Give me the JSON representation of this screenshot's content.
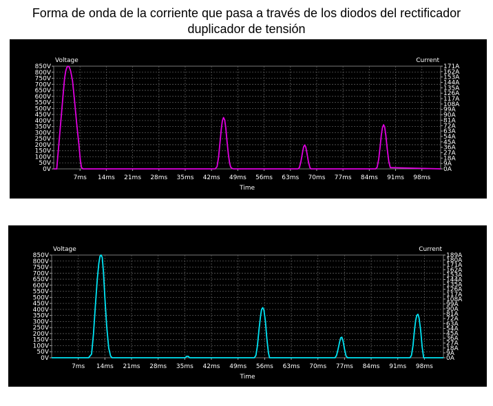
{
  "figure": {
    "title_line1": "Forma de onda de la corriente que pasa a través de los diodos del rectificador",
    "title_line2": "duplicador de tensión"
  },
  "chart_data": [
    {
      "type": "line",
      "ylabel_left": "Voltage",
      "ylabel_right": "Current",
      "xlabel": "Time",
      "grid": true,
      "background": "#000000",
      "grid_color": "#5a5a5a",
      "text_color": "#ffffff",
      "x_unit": "ms",
      "xlim": [
        0,
        103
      ],
      "x_ticks": [
        "7ms",
        "14ms",
        "21ms",
        "28ms",
        "35ms",
        "42ms",
        "49ms",
        "56ms",
        "63ms",
        "70ms",
        "77ms",
        "84ms",
        "91ms",
        "98ms"
      ],
      "ylim_left": [
        0,
        850
      ],
      "y_ticks_left": [
        "850V",
        "800V",
        "750V",
        "700V",
        "650V",
        "600V",
        "550V",
        "500V",
        "450V",
        "400V",
        "350V",
        "300V",
        "250V",
        "200V",
        "150V",
        "100V",
        "50V",
        "0V"
      ],
      "ylim_right": [
        0,
        171
      ],
      "y_ticks_right": [
        "171A",
        "162A",
        "153A",
        "144A",
        "135A",
        "126A",
        "117A",
        "108A",
        "99A",
        "90A",
        "81A",
        "72A",
        "63A",
        "54A",
        "45A",
        "36A",
        "27A",
        "18A",
        "9A",
        "0A"
      ],
      "series": [
        {
          "color": "#e000e0",
          "x": [
            0,
            0.8,
            2.6,
            2.9,
            3.2,
            3.5,
            3.8,
            4.1,
            4.5,
            5.0,
            5.5,
            6.1,
            6.7,
            7.1,
            7.4,
            7.8,
            43.0,
            43.5,
            43.9,
            44.3,
            44.6,
            44.9,
            45.2,
            45.5,
            45.8,
            46.1,
            46.5,
            46.8,
            47.1,
            47.5,
            47.9,
            65.0,
            65.4,
            65.8,
            66.2,
            66.5,
            66.8,
            67.1,
            67.4,
            67.8,
            68.2,
            68.5,
            85.7,
            86.1,
            86.5,
            86.9,
            87.2,
            87.5,
            87.8,
            88.1,
            88.4,
            88.8,
            89.2,
            89.6,
            103
          ],
          "y": [
            0,
            0,
            650,
            750,
            810,
            840,
            850,
            845,
            810,
            730,
            580,
            380,
            200,
            70,
            10,
            0,
            0,
            20,
            100,
            230,
            330,
            400,
            425,
            405,
            340,
            240,
            120,
            50,
            15,
            3,
            0,
            0,
            10,
            60,
            130,
            180,
            198,
            180,
            130,
            60,
            10,
            0,
            0,
            15,
            80,
            190,
            280,
            340,
            365,
            345,
            280,
            160,
            60,
            10,
            0
          ]
        }
      ]
    },
    {
      "type": "line",
      "ylabel_left": "Voltage",
      "ylabel_right": "Current",
      "xlabel": "Time",
      "grid": true,
      "background": "#000000",
      "grid_color": "#5a5a5a",
      "text_color": "#ffffff",
      "x_unit": "ms",
      "xlim": [
        0,
        103
      ],
      "x_ticks": [
        "7ms",
        "14ms",
        "21ms",
        "28ms",
        "35ms",
        "42ms",
        "49ms",
        "56ms",
        "63ms",
        "70ms",
        "77ms",
        "84ms",
        "91ms",
        "98ms"
      ],
      "ylim_left": [
        0,
        850
      ],
      "y_ticks_left": [
        "850V",
        "800V",
        "750V",
        "700V",
        "650V",
        "600V",
        "550V",
        "500V",
        "450V",
        "400V",
        "350V",
        "300V",
        "250V",
        "200V",
        "150V",
        "100V",
        "50V",
        "0V"
      ],
      "ylim_right": [
        0,
        189
      ],
      "y_ticks_right": [
        "189A",
        "180A",
        "171A",
        "162A",
        "153A",
        "144A",
        "135A",
        "126A",
        "117A",
        "108A",
        "99A",
        "90A",
        "81A",
        "72A",
        "63A",
        "54A",
        "45A",
        "36A",
        "27A",
        "18A",
        "9A",
        "0A"
      ],
      "series": [
        {
          "color": "#00e5f5",
          "x": [
            0,
            9.7,
            10.5,
            11.0,
            11.5,
            12.0,
            12.4,
            12.7,
            13.0,
            13.3,
            13.6,
            14.0,
            14.5,
            15.0,
            15.5,
            15.9,
            35.1,
            35.5,
            35.9,
            36.3,
            53.3,
            53.7,
            54.1,
            54.5,
            54.9,
            55.2,
            55.5,
            55.8,
            56.2,
            56.6,
            57.0,
            57.3,
            74.5,
            74.9,
            75.3,
            75.7,
            76.0,
            76.3,
            76.6,
            77.0,
            77.4,
            77.8,
            94.2,
            94.6,
            95.0,
            95.4,
            95.7,
            96.0,
            96.3,
            96.6,
            97.0,
            97.4,
            97.8,
            103
          ],
          "y": [
            0,
            0,
            30,
            200,
            430,
            650,
            780,
            840,
            850,
            830,
            720,
            500,
            250,
            80,
            15,
            0,
            0,
            12,
            12,
            0,
            0,
            20,
            100,
            230,
            340,
            400,
            415,
            395,
            300,
            150,
            40,
            0,
            0,
            20,
            70,
            130,
            165,
            170,
            140,
            70,
            15,
            0,
            0,
            20,
            100,
            230,
            310,
            350,
            360,
            330,
            230,
            90,
            0,
            0
          ]
        }
      ]
    }
  ]
}
